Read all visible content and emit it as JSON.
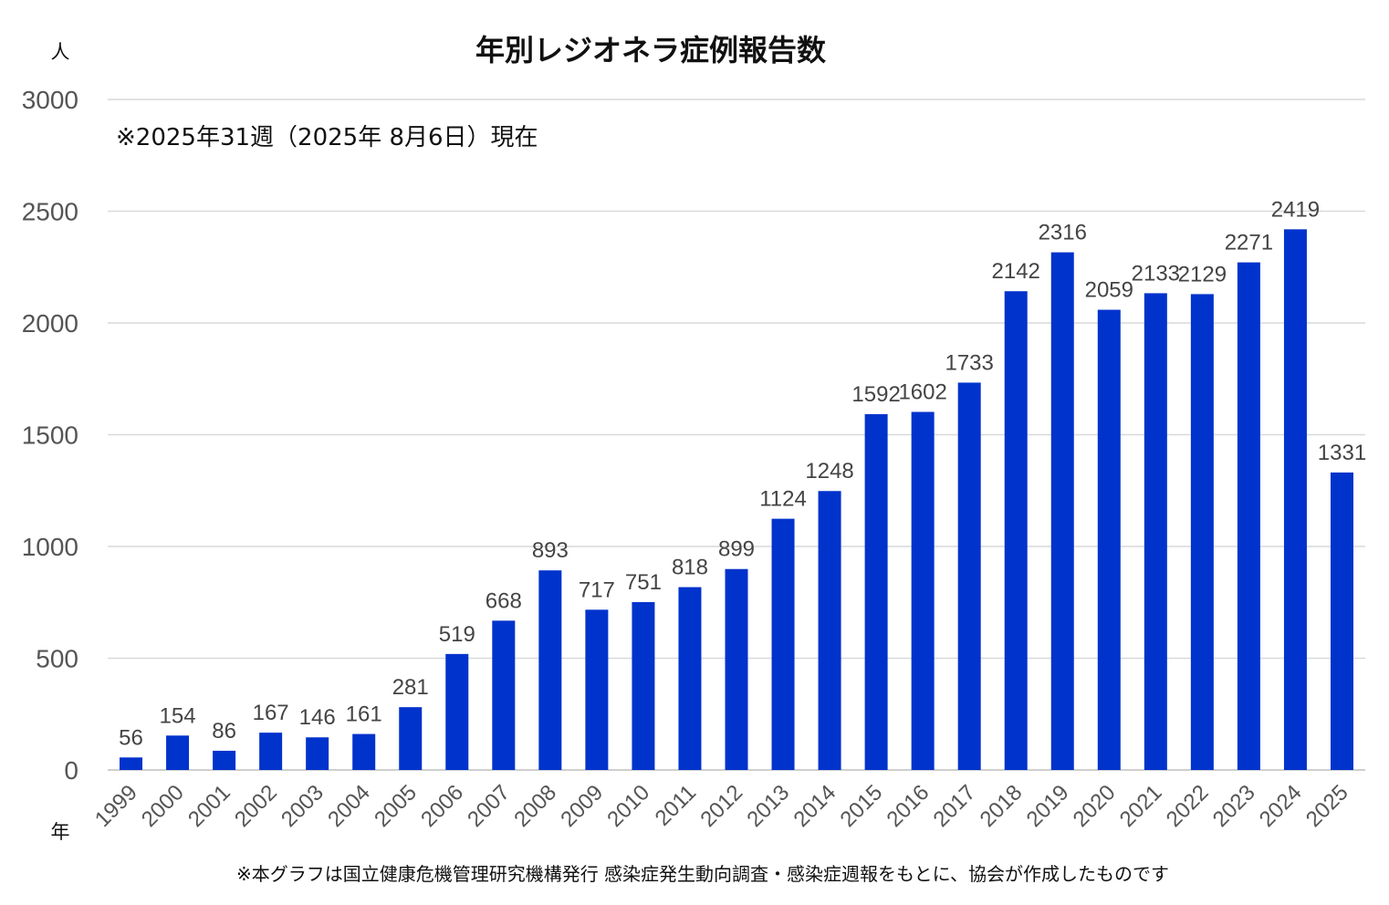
{
  "chart_data": {
    "type": "bar",
    "title": "年別レジオネラ症例報告数",
    "note": "※2025年31週（2025年 8月6日）現在",
    "ylabel": "人",
    "xlabel": "年",
    "source": "※本グラフは国立健康危機管理研究機構発行 感染症発生動向調査・感染症週報をもとに、協会が作成したものです",
    "ylim": [
      0,
      3000
    ],
    "yticks": [
      "0",
      "500",
      "1000",
      "1500",
      "2000",
      "2500",
      "3000"
    ],
    "grid": true,
    "bar_color": "#0033cc",
    "categories": [
      "1999",
      "2000",
      "2001",
      "2002",
      "2003",
      "2004",
      "2005",
      "2006",
      "2007",
      "2008",
      "2009",
      "2010",
      "2011",
      "2012",
      "2013",
      "2014",
      "2015",
      "2016",
      "2017",
      "2018",
      "2019",
      "2020",
      "2021",
      "2022",
      "2023",
      "2024",
      "2025"
    ],
    "values": [
      56,
      154,
      86,
      167,
      146,
      161,
      281,
      519,
      668,
      893,
      717,
      751,
      818,
      899,
      1124,
      1248,
      1592,
      1602,
      1733,
      2142,
      2316,
      2059,
      2133,
      2129,
      2271,
      2419,
      1331
    ]
  }
}
